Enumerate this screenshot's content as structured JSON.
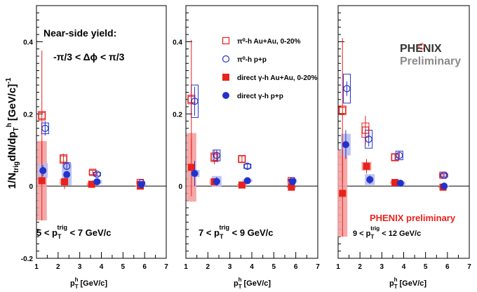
{
  "figure": {
    "ylabel": "1/N",
    "ylabel_sub1": "trig",
    "ylabel_mid": "dN/dp",
    "ylabel_sub2": "T",
    "ylabel_sup2": "h",
    "ylabel_unit": "[GeV/c]",
    "ylabel_exp": "-1",
    "xlabel_main": "p",
    "xlabel_sub": "T",
    "xlabel_sup": "h",
    "xlabel_unit": "[GeV/c]",
    "title_yield": "Near-side yield:",
    "title_range": "-π/3 < Δϕ < π/3",
    "logo_text": "PHENIX",
    "logo_sub": "Preliminary",
    "prelim_text": "PHENIX preliminary"
  },
  "legend": [
    {
      "label": "π⁰-h Au+Au, 0-20%",
      "marker": "open-square",
      "color": "#e8221c"
    },
    {
      "label": "π⁰-h p+p",
      "marker": "open-circle",
      "color": "#2233cc"
    },
    {
      "label": "direct γ-h Au+Au, 0-20%",
      "marker": "filled-square",
      "color": "#e8221c"
    },
    {
      "label": "direct γ-h p+p",
      "marker": "filled-circle",
      "color": "#2233cc"
    }
  ],
  "colors": {
    "red": "#e8221c",
    "blue": "#2233cc",
    "red_band": "#f4a0a0",
    "blue_band": "#b8bef0"
  },
  "chart_data": [
    {
      "type": "scatter",
      "panel_label": {
        "lo": "5 < ",
        "p": "p",
        "sub": "T",
        "sup": "trig",
        "hi": " < 7 GeV/c"
      },
      "xlim": [
        1,
        7
      ],
      "ylim": [
        -0.2,
        0.5
      ],
      "xticks": [
        1,
        2,
        3,
        4,
        5,
        6,
        7
      ],
      "yticks": [
        -0.2,
        0,
        0.2,
        0.4
      ],
      "ytick_labels": [
        "-0.2",
        "0",
        "0.2",
        "0.4"
      ],
      "series": [
        {
          "name": "π⁰-h Au+Au, 0-20%",
          "x": [
            1.25,
            2.25,
            3.6,
            5.8
          ],
          "y": [
            0.195,
            0.075,
            0.038,
            0.01
          ],
          "err": [
            0.18,
            0.015,
            0.005,
            0.003
          ],
          "sys": [
            0.012,
            0.012,
            0.006,
            0.003
          ]
        },
        {
          "name": "π⁰-h p+p",
          "x": [
            1.4,
            2.4,
            3.8,
            5.85
          ],
          "y": [
            0.16,
            0.055,
            0.033,
            0.009
          ],
          "err": [
            0.02,
            0.008,
            0.004,
            0.002
          ],
          "sys": [
            0.015,
            0.01,
            0.005,
            0.002
          ]
        },
        {
          "name": "direct γ-h Au+Au, 0-20%",
          "x": [
            1.25,
            2.3,
            3.55,
            5.8
          ],
          "y": [
            0.015,
            0.012,
            0.005,
            0.0
          ],
          "err": [
            0.11,
            0.02,
            0.005,
            0.003
          ],
          "sys": [
            0.11,
            0.008,
            0.003,
            0.002
          ]
        },
        {
          "name": "direct γ-h p+p",
          "x": [
            1.3,
            2.4,
            3.8,
            5.85
          ],
          "y": [
            0.043,
            0.032,
            0.012,
            0.004
          ],
          "err": [
            0.015,
            0.008,
            0.004,
            0.002
          ],
          "sys": [
            0.02,
            0.03,
            0.005,
            0.002
          ]
        }
      ]
    },
    {
      "type": "scatter",
      "panel_label": {
        "lo": "7 < ",
        "p": "p",
        "sub": "T",
        "sup": "trig",
        "hi": " < 9 GeV/c"
      },
      "xlim": [
        1,
        7
      ],
      "ylim": [
        -0.2,
        0.5
      ],
      "xticks": [
        1,
        2,
        3,
        4,
        5,
        6,
        7
      ],
      "yticks": [
        -0.2,
        0,
        0.2,
        0.4
      ],
      "ytick_labels": [
        "",
        "0",
        "0.2",
        "0.4"
      ],
      "series": [
        {
          "name": "π⁰-h Au+Au, 0-20%",
          "x": [
            1.25,
            2.3,
            3.55,
            5.8
          ],
          "y": [
            0.24,
            0.08,
            0.075,
            0.015
          ],
          "err": [
            0.165,
            0.02,
            0.01,
            0.004
          ],
          "sys": [
            0.012,
            0.012,
            0.01,
            0.004
          ]
        },
        {
          "name": "π⁰-h p+p",
          "x": [
            1.4,
            2.4,
            3.8,
            5.85
          ],
          "y": [
            0.235,
            0.085,
            0.055,
            0.015
          ],
          "err": [
            0.04,
            0.015,
            0.008,
            0.003
          ],
          "sys": [
            0.045,
            0.015,
            0.006,
            0.003
          ]
        },
        {
          "name": "direct γ-h Au+Au, 0-20%",
          "x": [
            1.25,
            2.3,
            3.55,
            5.8
          ],
          "y": [
            0.052,
            0.012,
            0.003,
            -0.003
          ],
          "err": [
            0.08,
            0.01,
            0.005,
            0.003
          ],
          "sys": [
            0.095,
            0.008,
            0.003,
            0.002
          ]
        },
        {
          "name": "direct γ-h p+p",
          "x": [
            1.4,
            2.4,
            3.8,
            5.85
          ],
          "y": [
            0.035,
            0.013,
            0.015,
            0.012
          ],
          "err": [
            0.035,
            0.012,
            0.003,
            0.002
          ],
          "sys": [
            0.01,
            0.015,
            0.004,
            0.002
          ]
        }
      ]
    },
    {
      "type": "scatter",
      "panel_label": {
        "lo": "9 < ",
        "p": "p",
        "sub": "T",
        "sup": "trig",
        "hi": " < 12 GeV/c"
      },
      "xlim": [
        1,
        7
      ],
      "ylim": [
        -0.2,
        0.5
      ],
      "xticks": [
        1,
        2,
        3,
        4,
        5,
        6,
        7
      ],
      "yticks": [
        -0.2,
        0,
        0.2,
        0.4
      ],
      "ytick_labels": [
        "",
        "",
        "",
        ""
      ],
      "series": [
        {
          "name": "π⁰-h Au+Au, 0-20%",
          "x": [
            1.2,
            2.25,
            3.6,
            5.8
          ],
          "y": [
            0.21,
            0.155,
            0.08,
            0.03
          ],
          "err": [
            0.2,
            0.04,
            0.01,
            0.005
          ],
          "sys": [
            0.012,
            0.02,
            0.01,
            0.005
          ]
        },
        {
          "name": "π⁰-h p+p",
          "x": [
            1.4,
            2.4,
            3.8,
            5.85
          ],
          "y": [
            0.27,
            0.13,
            0.085,
            0.03
          ],
          "err": [
            0.02,
            0.02,
            0.01,
            0.005
          ],
          "sys": [
            0.04,
            0.025,
            0.012,
            0.005
          ]
        },
        {
          "name": "direct γ-h Au+Au, 0-20%",
          "x": [
            1.2,
            2.3,
            3.6,
            5.8
          ],
          "y": [
            -0.02,
            0.055,
            0.01,
            -0.003
          ],
          "err": [
            0.12,
            0.02,
            0.005,
            0.003
          ],
          "sys": [
            0.12,
            0.012,
            0.004,
            0.002
          ]
        },
        {
          "name": "direct γ-h p+p",
          "x": [
            1.35,
            2.45,
            3.85,
            5.85
          ],
          "y": [
            0.115,
            0.018,
            0.008,
            0.0
          ],
          "err": [
            0.04,
            0.012,
            0.004,
            0.002
          ],
          "sys": [
            0.03,
            0.015,
            0.005,
            0.002
          ]
        }
      ]
    }
  ]
}
